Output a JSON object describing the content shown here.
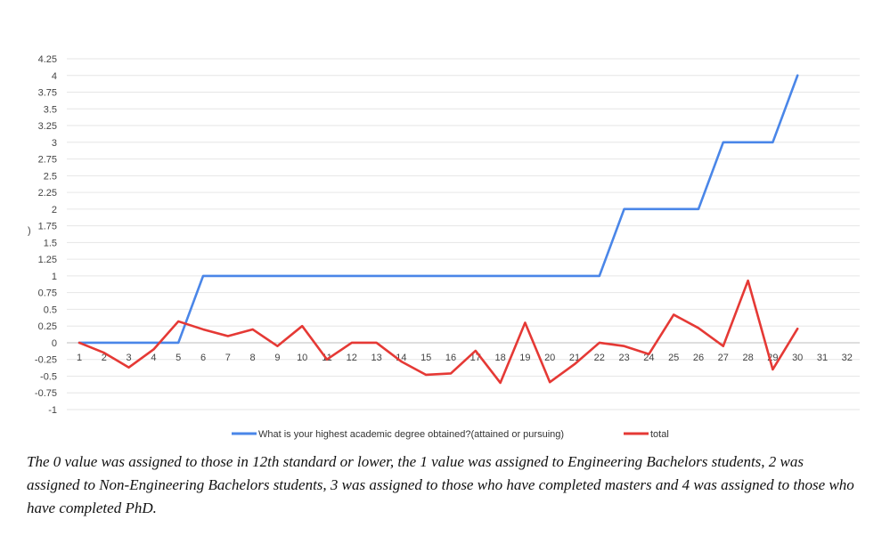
{
  "chart_data": {
    "type": "line",
    "title": "",
    "xlabel": "",
    "ylabel": "",
    "y_axis_stub": ")",
    "categories": [
      "1",
      "2",
      "3",
      "4",
      "5",
      "6",
      "7",
      "8",
      "9",
      "10",
      "11",
      "12",
      "13",
      "14",
      "15",
      "16",
      "17",
      "18",
      "19",
      "20",
      "21",
      "22",
      "23",
      "24",
      "25",
      "26",
      "27",
      "28",
      "29",
      "30",
      "31",
      "32"
    ],
    "yticks": [
      "-1",
      "-0.75",
      "-0.5",
      "-0.25",
      "0",
      "0.25",
      "0.5",
      "0.75",
      "1",
      "1.25",
      "1.5",
      "1.75",
      "2",
      "2.25",
      "2.5",
      "2.75",
      "3",
      "3.25",
      "3.5",
      "3.75",
      "4",
      "4.25"
    ],
    "ylim": [
      -1,
      4.25
    ],
    "grid": true,
    "legend_position": "bottom",
    "series": [
      {
        "name": "What is your highest academic degree obtained?(attained or pursuing)",
        "color": "#4a86e8",
        "values": [
          0,
          0,
          0,
          0,
          0,
          1,
          1,
          1,
          1,
          1,
          1,
          1,
          1,
          1,
          1,
          1,
          1,
          1,
          1,
          1,
          1,
          1,
          2,
          2,
          2,
          2,
          3,
          3,
          3,
          4,
          null,
          null
        ]
      },
      {
        "name": "total",
        "color": "#e53935",
        "values": [
          0,
          -0.15,
          -0.37,
          -0.1,
          0.32,
          0.2,
          0.1,
          0.2,
          -0.05,
          0.25,
          -0.25,
          0,
          0,
          -0.28,
          -0.48,
          -0.46,
          -0.12,
          -0.6,
          0.3,
          -0.59,
          -0.32,
          0,
          -0.05,
          -0.17,
          0.42,
          0.22,
          -0.05,
          0.93,
          -0.4,
          0.21,
          null,
          null
        ]
      }
    ]
  },
  "caption": "The 0 value was assigned to those in 12th standard or lower, the 1 value was assigned to Engineering Bachelors students, 2 was assigned to Non-Engineering Bachelors students, 3 was assigned to those who have completed masters and 4 was assigned to those who have completed PhD."
}
